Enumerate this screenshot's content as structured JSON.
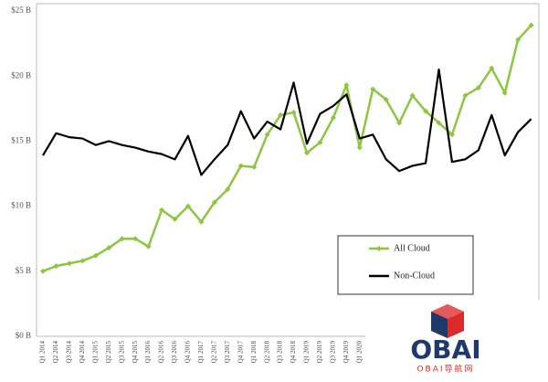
{
  "chart_data": {
    "type": "line",
    "categories": [
      "Q1 2014",
      "Q2 2014",
      "Q3 2014",
      "Q4 2014",
      "Q1 2015",
      "Q2 2015",
      "Q3 2015",
      "Q4 2015",
      "Q1 2016",
      "Q2 2016",
      "Q3 2016",
      "Q4 2016",
      "Q1 2017",
      "Q2 2017",
      "Q3 2017",
      "Q4 2017",
      "Q1 2018",
      "Q2 2018",
      "Q3 2018",
      "Q4 2018",
      "Q1 2019",
      "Q2 2019",
      "Q3 2019",
      "Q4 2019",
      "Q1 2020",
      null,
      null,
      null,
      null,
      null,
      null,
      null,
      null,
      null,
      null,
      null,
      null,
      null
    ],
    "series": [
      {
        "name": "All Cloud",
        "color": "#8dc63f",
        "marker": "diamond",
        "values": [
          5.0,
          5.4,
          5.6,
          5.8,
          6.2,
          6.8,
          7.5,
          7.5,
          6.9,
          9.7,
          9.0,
          10.0,
          8.8,
          10.3,
          11.3,
          13.1,
          13.0,
          15.5,
          17.0,
          17.2,
          14.1,
          14.9,
          16.8,
          19.3,
          14.5,
          19.0,
          18.2,
          16.4,
          18.5,
          17.3,
          16.4,
          15.5,
          18.5,
          19.1,
          20.6,
          18.7,
          22.8,
          23.9
        ]
      },
      {
        "name": "Non-Cloud",
        "color": "#000000",
        "values": [
          13.9,
          15.6,
          15.3,
          15.2,
          14.7,
          15.0,
          14.7,
          14.5,
          14.2,
          14.0,
          13.6,
          15.4,
          12.4,
          13.6,
          14.7,
          17.3,
          15.2,
          16.5,
          15.9,
          19.5,
          14.8,
          17.1,
          17.7,
          18.6,
          15.2,
          15.5,
          13.6,
          12.7,
          13.1,
          13.3,
          20.5,
          13.4,
          13.6,
          14.3,
          17.0,
          13.9,
          15.7,
          16.7
        ]
      }
    ],
    "ylim": [
      0,
      25
    ],
    "yticks": [
      {
        "value": 0,
        "label": "$0 B"
      },
      {
        "value": 5,
        "label": "$5 B"
      },
      {
        "value": 10,
        "label": "$10 B"
      },
      {
        "value": 15,
        "label": "$15 B"
      },
      {
        "value": 20,
        "label": "$20 B"
      },
      {
        "value": 25,
        "label": "$25 B"
      }
    ],
    "legend": "lower-right"
  },
  "watermark": {
    "logo": "OBAI",
    "caption": "OBAI导航网"
  }
}
